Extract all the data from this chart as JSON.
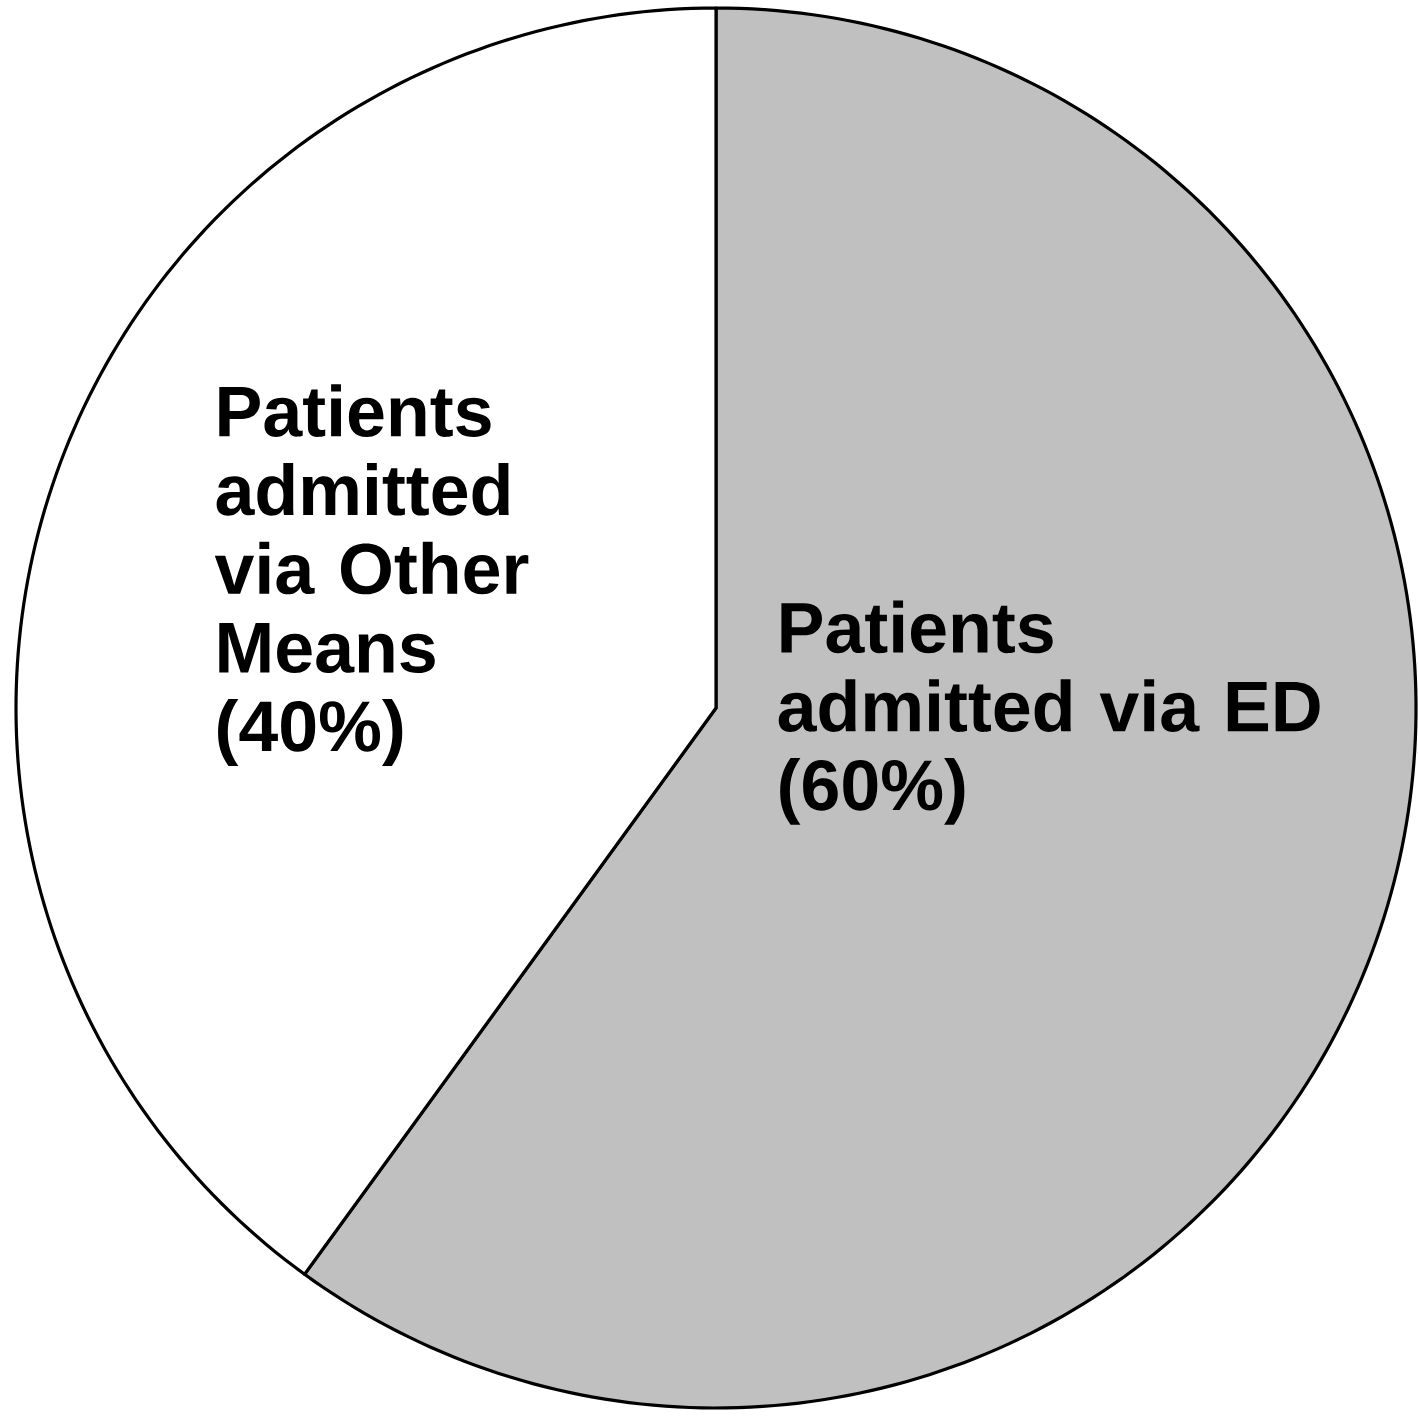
{
  "chart_data": {
    "type": "pie",
    "categories": [
      "Patients admitted via ED (60%)",
      "Patients admitted via Other Means (40%)"
    ],
    "values": [
      60,
      40
    ],
    "colors": [
      "#c0c0c0",
      "#ffffff"
    ]
  }
}
